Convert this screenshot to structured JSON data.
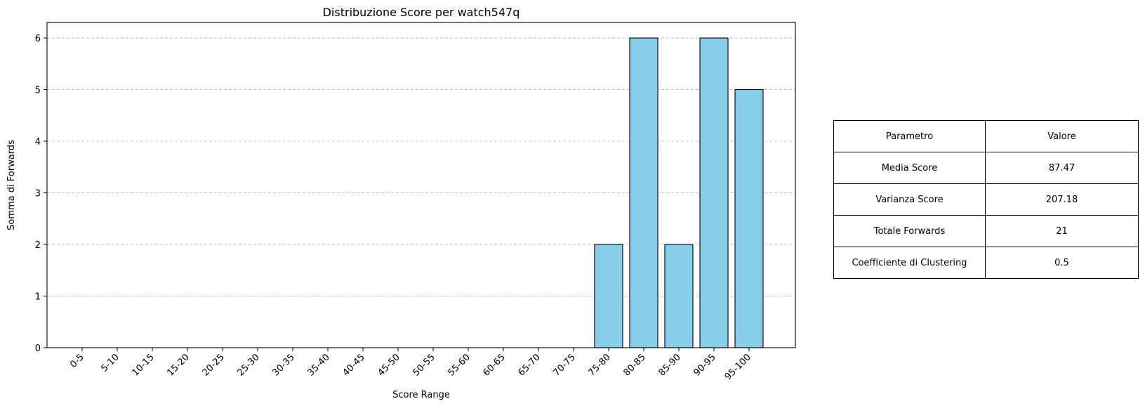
{
  "chart_data": {
    "type": "bar",
    "title": "Distribuzione Score per watch547q",
    "xlabel": "Score Range",
    "ylabel": "Somma di Forwards",
    "categories": [
      "0-5",
      "5-10",
      "10-15",
      "15-20",
      "20-25",
      "25-30",
      "30-35",
      "35-40",
      "40-45",
      "45-50",
      "50-55",
      "55-60",
      "60-65",
      "65-70",
      "70-75",
      "75-80",
      "80-85",
      "85-90",
      "90-95",
      "95-100"
    ],
    "values": [
      0,
      0,
      0,
      0,
      0,
      0,
      0,
      0,
      0,
      0,
      0,
      0,
      0,
      0,
      0,
      2,
      6,
      2,
      6,
      5
    ],
    "yticks": [
      "0",
      "1",
      "2",
      "3",
      "4",
      "5",
      "6"
    ],
    "ylim": [
      0,
      6.3
    ],
    "grid": "y-dashed",
    "bar_color": "#87CEEB",
    "edge_color": "#000000",
    "grid_color": "#b0b0b0"
  },
  "table": {
    "header": {
      "param": "Parametro",
      "value": "Valore"
    },
    "rows": [
      {
        "param": "Media Score",
        "value": "87.47"
      },
      {
        "param": "Varianza Score",
        "value": "207.18"
      },
      {
        "param": "Totale Forwards",
        "value": "21"
      },
      {
        "param": "Coefficiente di Clustering",
        "value": "0.5"
      }
    ]
  }
}
